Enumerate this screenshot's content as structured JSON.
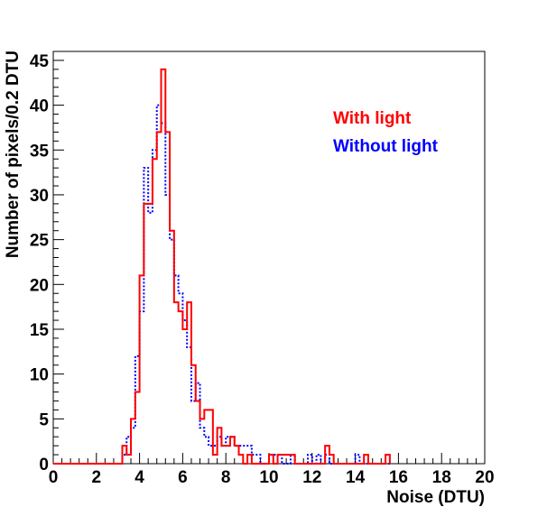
{
  "chart_data": {
    "type": "histogram",
    "xlabel": "Noise (DTU)",
    "ylabel": "Number of pixels/0.2 DTU",
    "xlim": [
      0,
      20
    ],
    "ylim": [
      0,
      46
    ],
    "bin_width": 0.2,
    "x_ticks": [
      0,
      2,
      4,
      6,
      8,
      10,
      12,
      14,
      16,
      18,
      20
    ],
    "y_ticks": [
      0,
      5,
      10,
      15,
      20,
      25,
      30,
      35,
      40,
      45
    ],
    "grid": false,
    "legend_placement": "top-right",
    "series": [
      {
        "name": "With light",
        "color": "#ff0000",
        "line_style": "solid",
        "bin_edges": [
          3.2,
          3.4,
          3.6,
          3.8,
          4.0,
          4.2,
          4.4,
          4.6,
          4.8,
          5.0,
          5.2,
          5.4,
          5.6,
          5.8,
          6.0,
          6.2,
          6.4,
          6.6,
          6.8,
          7.0,
          7.2,
          7.4,
          7.6,
          7.8,
          8.0,
          8.2,
          8.4,
          8.6,
          8.8,
          9.0,
          9.2,
          9.4,
          9.6,
          9.8,
          10.0,
          10.2,
          10.4,
          10.6,
          10.8,
          11.0,
          11.2,
          11.4,
          11.6,
          11.8,
          12.0,
          12.2,
          12.4,
          12.6,
          12.8,
          13.0,
          13.2,
          13.4,
          13.6,
          13.8,
          14.0,
          14.2,
          14.4,
          14.6,
          14.8,
          15.0,
          15.2,
          15.4,
          15.6
        ],
        "counts": [
          2,
          1,
          5,
          8,
          21,
          29,
          29,
          34,
          37,
          44,
          37,
          26,
          18,
          17,
          15,
          18,
          11,
          7,
          5,
          6,
          6,
          1,
          4,
          2,
          2,
          3,
          2,
          1,
          0,
          1,
          0,
          0,
          0,
          0,
          1,
          0,
          1,
          1,
          1,
          1,
          0,
          0,
          0,
          0,
          0,
          0,
          0,
          2,
          1,
          0,
          0,
          0,
          0,
          0,
          0,
          0,
          1,
          0,
          0,
          0,
          0,
          1,
          0
        ]
      },
      {
        "name": "Without light",
        "color": "#0000ff",
        "line_style": "dotted",
        "bin_edges": [
          3.2,
          3.4,
          3.6,
          3.8,
          4.0,
          4.2,
          4.4,
          4.6,
          4.8,
          5.0,
          5.2,
          5.4,
          5.6,
          5.8,
          6.0,
          6.2,
          6.4,
          6.6,
          6.8,
          7.0,
          7.2,
          7.4,
          7.6,
          7.8,
          8.0,
          8.2,
          8.4,
          8.6,
          8.8,
          9.0,
          9.2,
          9.4,
          9.6,
          9.8,
          10.0,
          10.2,
          10.4,
          10.6,
          10.8,
          11.0,
          11.2,
          11.4,
          11.6,
          11.8,
          12.0,
          12.2,
          12.4,
          12.6,
          12.8,
          13.0,
          13.2,
          13.4,
          13.6,
          13.8,
          14.0,
          14.2,
          14.4,
          14.6,
          14.8,
          15.0,
          15.2,
          15.4,
          15.6
        ],
        "counts": [
          1,
          3,
          4,
          12,
          17,
          33,
          28,
          35,
          40,
          38,
          30,
          25,
          21,
          19,
          16,
          13,
          7,
          9,
          4,
          3,
          2,
          2,
          3,
          2,
          3,
          3,
          2,
          2,
          2,
          2,
          1,
          1,
          0,
          0,
          1,
          1,
          1,
          0,
          0,
          1,
          0,
          0,
          0,
          1,
          0,
          1,
          0,
          1,
          0,
          0,
          0,
          0,
          0,
          0,
          1,
          0,
          0,
          0,
          0,
          0,
          0,
          0,
          0
        ]
      }
    ]
  }
}
